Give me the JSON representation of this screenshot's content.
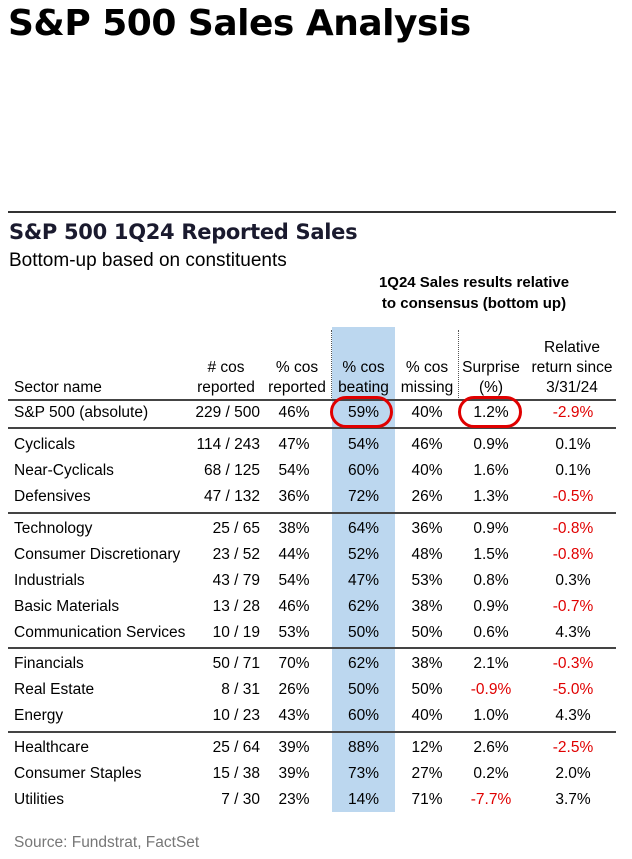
{
  "page_title": "S&P 500 Sales Analysis",
  "section": {
    "title": "S&P 500 1Q24 Reported Sales",
    "subtitle": "Bottom-up based on constituents",
    "group_label_line1": "1Q24 Sales results relative",
    "group_label_line2": "to consensus (bottom up)"
  },
  "columns": {
    "sector": "Sector name",
    "reported": [
      "# cos",
      "reported"
    ],
    "pct_reported": [
      "% cos",
      "reported"
    ],
    "beating": [
      "% cos",
      "beating"
    ],
    "missing": [
      "% cos",
      "missing"
    ],
    "surprise": [
      "Surprise",
      "(%)"
    ],
    "relative": [
      "Relative",
      "return since",
      "3/31/24"
    ]
  },
  "highlight_color": "#bcd7ef",
  "negative_color": "#e00000",
  "rows": [
    {
      "name": "S&P 500 (absolute)",
      "reported": "229 / 500",
      "pct_reported": "46%",
      "beating": "59%",
      "missing": "40%",
      "surprise": "1.2%",
      "relative": "-2.9%"
    },
    {
      "name": "Cyclicals",
      "reported": "114 / 243",
      "pct_reported": "47%",
      "beating": "54%",
      "missing": "46%",
      "surprise": "0.9%",
      "relative": "0.1%"
    },
    {
      "name": "Near-Cyclicals",
      "reported": "68 / 125",
      "pct_reported": "54%",
      "beating": "60%",
      "missing": "40%",
      "surprise": "1.6%",
      "relative": "0.1%"
    },
    {
      "name": "Defensives",
      "reported": "47 / 132",
      "pct_reported": "36%",
      "beating": "72%",
      "missing": "26%",
      "surprise": "1.3%",
      "relative": "-0.5%"
    },
    {
      "name": "Technology",
      "reported": "25 / 65",
      "pct_reported": "38%",
      "beating": "64%",
      "missing": "36%",
      "surprise": "0.9%",
      "relative": "-0.8%"
    },
    {
      "name": "Consumer Discretionary",
      "reported": "23 / 52",
      "pct_reported": "44%",
      "beating": "52%",
      "missing": "48%",
      "surprise": "1.5%",
      "relative": "-0.8%"
    },
    {
      "name": "Industrials",
      "reported": "43 / 79",
      "pct_reported": "54%",
      "beating": "47%",
      "missing": "53%",
      "surprise": "0.8%",
      "relative": "0.3%"
    },
    {
      "name": "Basic Materials",
      "reported": "13 / 28",
      "pct_reported": "46%",
      "beating": "62%",
      "missing": "38%",
      "surprise": "0.9%",
      "relative": "-0.7%"
    },
    {
      "name": "Communication Services",
      "reported": "10 / 19",
      "pct_reported": "53%",
      "beating": "50%",
      "missing": "50%",
      "surprise": "0.6%",
      "relative": "4.3%"
    },
    {
      "name": "Financials",
      "reported": "50 / 71",
      "pct_reported": "70%",
      "beating": "62%",
      "missing": "38%",
      "surprise": "2.1%",
      "relative": "-0.3%"
    },
    {
      "name": "Real Estate",
      "reported": "8 / 31",
      "pct_reported": "26%",
      "beating": "50%",
      "missing": "50%",
      "surprise": "-0.9%",
      "relative": "-5.0%"
    },
    {
      "name": "Energy",
      "reported": "10 / 23",
      "pct_reported": "43%",
      "beating": "60%",
      "missing": "40%",
      "surprise": "1.0%",
      "relative": "4.3%"
    },
    {
      "name": "Healthcare",
      "reported": "25 / 64",
      "pct_reported": "39%",
      "beating": "88%",
      "missing": "12%",
      "surprise": "2.6%",
      "relative": "-2.5%"
    },
    {
      "name": "Consumer Staples",
      "reported": "15 / 38",
      "pct_reported": "39%",
      "beating": "73%",
      "missing": "27%",
      "surprise": "0.2%",
      "relative": "2.0%"
    },
    {
      "name": "Utilities",
      "reported": "7 / 30",
      "pct_reported": "23%",
      "beating": "14%",
      "missing": "71%",
      "surprise": "-7.7%",
      "relative": "3.7%"
    }
  ],
  "source": "Source: Fundstrat, FactSet"
}
